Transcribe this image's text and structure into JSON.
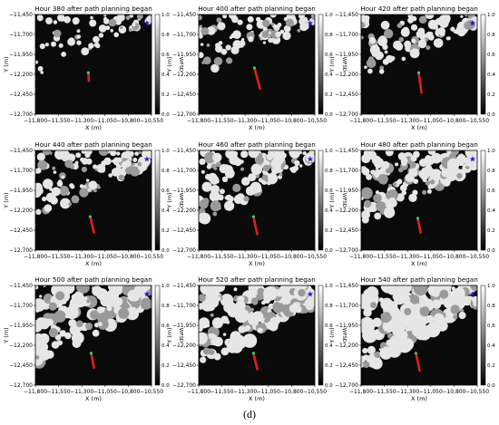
{
  "figure_caption": "(d)",
  "colors": {
    "terrain_light": "#e6e6e6",
    "terrain_dark": "#0a0a0a",
    "path": "#e0201b",
    "target": "#1a1ad6",
    "start": "#2fd07a"
  },
  "chart_data": [
    {
      "type": "heatmap",
      "title": "Hour 380 after path planning began",
      "xlabel": "X (m)",
      "ylabel": "Y (m)",
      "colorbar_label": "WFSD",
      "x_ticks": [
        "−11,800",
        "−11,550",
        "−11,300",
        "−11,050",
        "−10,800",
        "−10,550"
      ],
      "y_ticks": [
        "−11,450",
        "−11,700",
        "−11,950",
        "−12,200",
        "−12,450",
        "−12,700"
      ],
      "colorbar_ticks": [
        "1.0",
        "0.8",
        "0.6",
        "0.4",
        "0.2",
        "0.0"
      ],
      "xlim": [
        -11800,
        -10550
      ],
      "ylim": [
        -12700,
        -11450
      ],
      "colorbar_range": [
        0,
        1
      ],
      "target": [
        -10600,
        -11560
      ],
      "path": [
        [
          -11230,
          -12180
        ],
        [
          -11225,
          -12280
        ]
      ]
    },
    {
      "type": "heatmap",
      "title": "Hour 400 after path planning began",
      "xlabel": "X (m)",
      "ylabel": "Y (m)",
      "colorbar_label": "WFSD",
      "x_ticks": [
        "−11,800",
        "−11,550",
        "−11,300",
        "−11,050",
        "−10,800",
        "−10,550"
      ],
      "y_ticks": [
        "−11,450",
        "−11,700",
        "−11,950",
        "−12,200",
        "−12,450",
        "−12,700"
      ],
      "colorbar_ticks": [
        "1.0",
        "0.8",
        "0.6",
        "0.4",
        "0.2",
        "0.0"
      ],
      "xlim": [
        -11800,
        -10550
      ],
      "ylim": [
        -12700,
        -11450
      ],
      "colorbar_range": [
        0,
        1
      ],
      "target": [
        -10600,
        -11560
      ],
      "path": [
        [
          -11200,
          -12120
        ],
        [
          -11140,
          -12380
        ]
      ]
    },
    {
      "type": "heatmap",
      "title": "Hour 420 after path planning began",
      "xlabel": "X (m)",
      "ylabel": "Y (m)",
      "colorbar_label": "WFSD",
      "x_ticks": [
        "−11,800",
        "−11,550",
        "−11,300",
        "−11,050",
        "−10,800",
        "−10,550"
      ],
      "y_ticks": [
        "−11,450",
        "−11,700",
        "−11,950",
        "−12,200",
        "−12,450",
        "−12,700"
      ],
      "colorbar_ticks": [
        "1.0",
        "0.8",
        "0.6",
        "0.4",
        "0.2",
        "0.0"
      ],
      "xlim": [
        -11800,
        -10550
      ],
      "ylim": [
        -12700,
        -11450
      ],
      "colorbar_range": [
        0,
        1
      ],
      "target": [
        -10600,
        -11560
      ],
      "path": [
        [
          -11180,
          -12180
        ],
        [
          -11150,
          -12430
        ]
      ]
    },
    {
      "type": "heatmap",
      "title": "Hour 440 after path planning began",
      "xlabel": "X (m)",
      "ylabel": "Y (m)",
      "colorbar_label": "WFSD",
      "x_ticks": [
        "−11,800",
        "−11,550",
        "−11,300",
        "−11,050",
        "−10,800",
        "−10,550"
      ],
      "y_ticks": [
        "−11,450",
        "−11,700",
        "−11,950",
        "−12,200",
        "−12,450",
        "−12,700"
      ],
      "colorbar_ticks": [
        "1.0",
        "0.8",
        "0.6",
        "0.4",
        "0.2",
        "0.0"
      ],
      "xlim": [
        -11800,
        -10550
      ],
      "ylim": [
        -12700,
        -11450
      ],
      "colorbar_range": [
        0,
        1
      ],
      "target": [
        -10600,
        -11560
      ],
      "path": [
        [
          -11210,
          -12280
        ],
        [
          -11170,
          -12480
        ]
      ]
    },
    {
      "type": "heatmap",
      "title": "Hour 460 after path planning began",
      "xlabel": "X (m)",
      "ylabel": "Y (m)",
      "colorbar_label": "WFSD",
      "x_ticks": [
        "−11,800",
        "−11,550",
        "−11,300",
        "−11,050",
        "−10,800",
        "−10,550"
      ],
      "y_ticks": [
        "−11,450",
        "−11,700",
        "−11,950",
        "−12,200",
        "−12,450",
        "−12,700"
      ],
      "colorbar_ticks": [
        "1.0",
        "0.8",
        "0.6",
        "0.4",
        "0.2",
        "0.0"
      ],
      "xlim": [
        -11800,
        -10550
      ],
      "ylim": [
        -12700,
        -11450
      ],
      "colorbar_range": [
        0,
        1
      ],
      "target": [
        -10600,
        -11560
      ],
      "path": [
        [
          -11210,
          -12280
        ],
        [
          -11170,
          -12500
        ]
      ]
    },
    {
      "type": "heatmap",
      "title": "Hour 480 after path planning began",
      "xlabel": "X (m)",
      "ylabel": "Y (m)",
      "colorbar_label": "WFSD",
      "x_ticks": [
        "−11,800",
        "−11,550",
        "−11,300",
        "−11,050",
        "−10,800",
        "−10,550"
      ],
      "y_ticks": [
        "−11,450",
        "−11,700",
        "−11,950",
        "−12,200",
        "−12,450",
        "−12,700"
      ],
      "colorbar_ticks": [
        "1.0",
        "0.8",
        "0.6",
        "0.4",
        "0.2",
        "0.0"
      ],
      "xlim": [
        -11800,
        -10550
      ],
      "ylim": [
        -12700,
        -11450
      ],
      "colorbar_range": [
        0,
        1
      ],
      "target": [
        -10600,
        -11560
      ],
      "path": [
        [
          -11190,
          -12300
        ],
        [
          -11160,
          -12480
        ]
      ]
    },
    {
      "type": "heatmap",
      "title": "Hour 500 after path planning began",
      "xlabel": "X (m)",
      "ylabel": "Y (m)",
      "colorbar_label": "WFSD",
      "x_ticks": [
        "−11,800",
        "−11,550",
        "−11,300",
        "−11,050",
        "−10,800",
        "−10,550"
      ],
      "y_ticks": [
        "−11,450",
        "−11,700",
        "−11,950",
        "−12,200",
        "−12,450",
        "−12,700"
      ],
      "colorbar_ticks": [
        "1.0",
        "0.8",
        "0.6",
        "0.4",
        "0.2",
        "0.0"
      ],
      "xlim": [
        -11800,
        -10550
      ],
      "ylim": [
        -12700,
        -11450
      ],
      "colorbar_range": [
        0,
        1
      ],
      "target": [
        -10600,
        -11560
      ],
      "path": [
        [
          -11200,
          -12300
        ],
        [
          -11170,
          -12480
        ]
      ]
    },
    {
      "type": "heatmap",
      "title": "Hour 520 after path planning began",
      "xlabel": "X (m)",
      "ylabel": "Y (m)",
      "colorbar_label": "WFSD",
      "x_ticks": [
        "−11,800",
        "−11,550",
        "−11,300",
        "−11,050",
        "−10,800",
        "−10,550"
      ],
      "y_ticks": [
        "−11,450",
        "−11,700",
        "−11,950",
        "−12,200",
        "−12,450",
        "−12,700"
      ],
      "colorbar_ticks": [
        "1.0",
        "0.8",
        "0.6",
        "0.4",
        "0.2",
        "0.0"
      ],
      "xlim": [
        -11800,
        -10550
      ],
      "ylim": [
        -12700,
        -11450
      ],
      "colorbar_range": [
        0,
        1
      ],
      "target": [
        -10600,
        -11560
      ],
      "path": [
        [
          -11210,
          -12300
        ],
        [
          -11170,
          -12500
        ]
      ]
    },
    {
      "type": "heatmap",
      "title": "Hour 540 after path planning began",
      "xlabel": "X (m)",
      "ylabel": "Y (m)",
      "colorbar_label": "WFSD",
      "x_ticks": [
        "−11,800",
        "−11,550",
        "−11,300",
        "−11,050",
        "−10,800",
        "−10,550"
      ],
      "y_ticks": [
        "−11,450",
        "−11,700",
        "−11,950",
        "−12,200",
        "−12,450",
        "−12,700"
      ],
      "colorbar_ticks": [
        "1.0",
        "0.8",
        "0.6",
        "0.4",
        "0.2",
        "0.0"
      ],
      "xlim": [
        -11800,
        -10550
      ],
      "ylim": [
        -12700,
        -11450
      ],
      "colorbar_range": [
        0,
        1
      ],
      "target": [
        -10600,
        -11560
      ],
      "path": [
        [
          -11210,
          -12300
        ],
        [
          -11170,
          -12520
        ]
      ]
    }
  ]
}
